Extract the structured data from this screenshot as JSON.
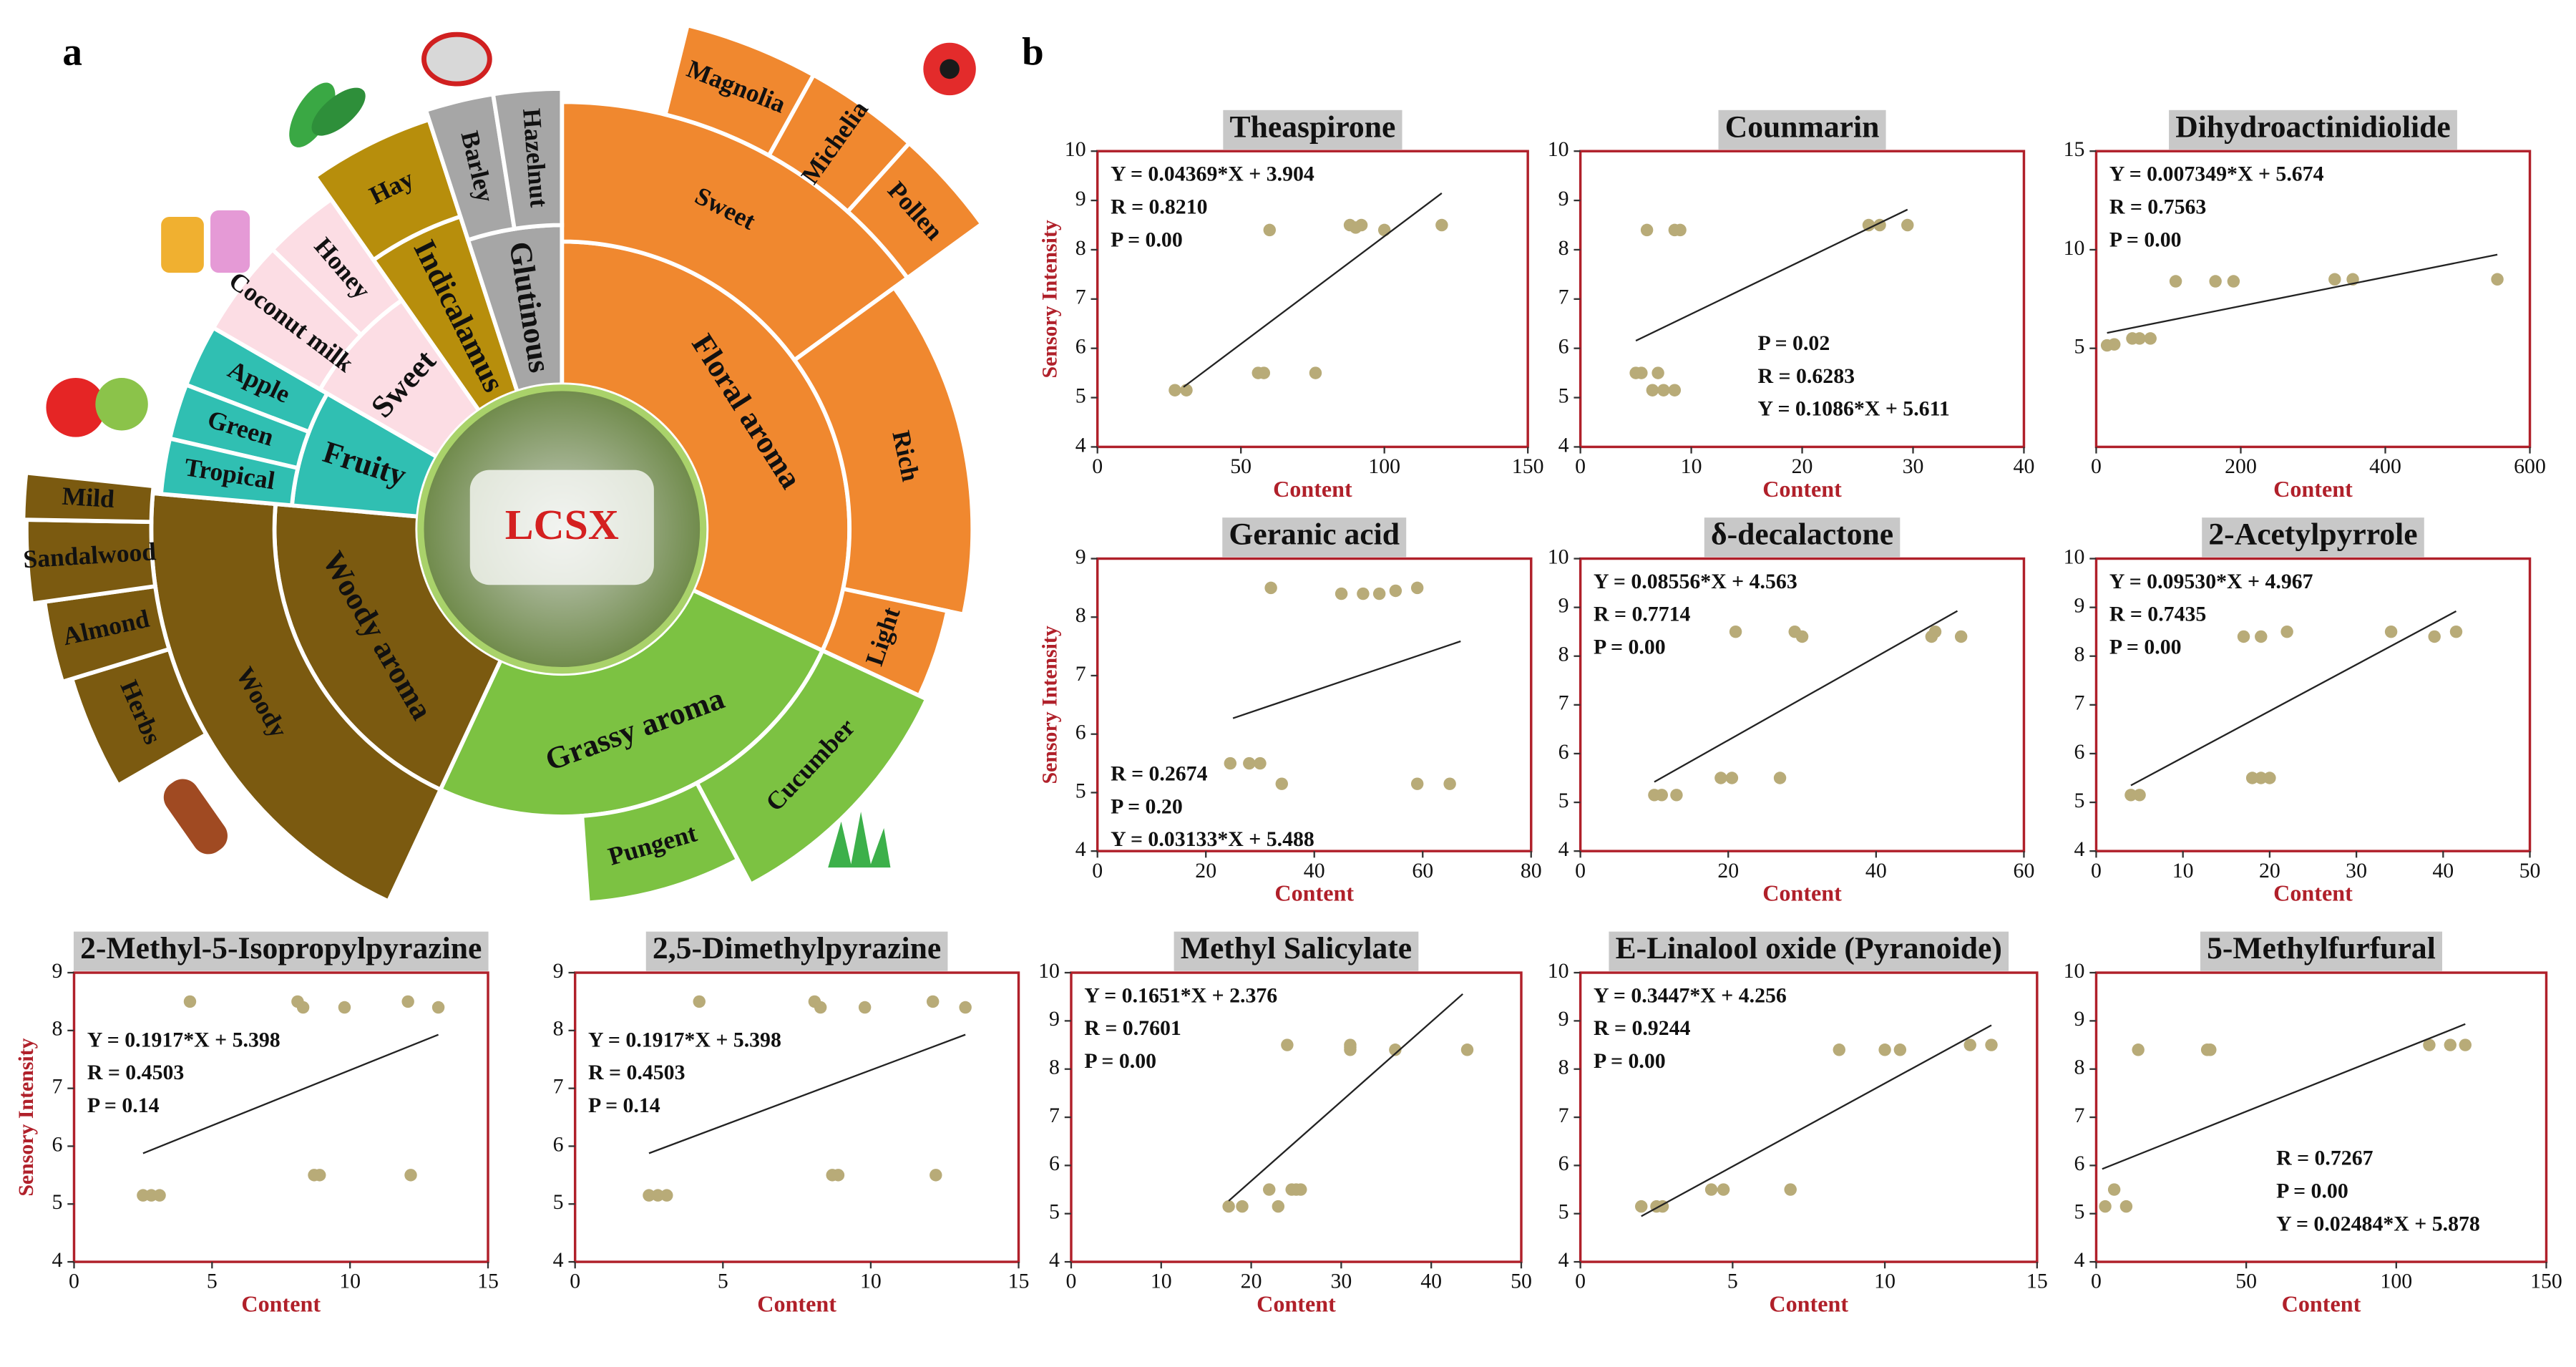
{
  "panel_labels": [
    "a",
    "b"
  ],
  "panel_a": {
    "center_label": "LCSX",
    "groups": [
      {
        "label": "Floral aroma",
        "color": "#f0882f",
        "children": [
          {
            "label": "Sweet",
            "children": [
              {
                "label": "Magnolia"
              },
              {
                "label": "Michelia"
              },
              {
                "label": "Pollen"
              }
            ]
          },
          {
            "label": "Rich"
          },
          {
            "label": "Light"
          }
        ]
      },
      {
        "label": "Grassy aroma",
        "color": "#7cc242",
        "children": [
          {
            "label": "Cucumber"
          },
          {
            "label": "Pungent"
          }
        ]
      },
      {
        "label": "Woody aroma",
        "color": "#7b5a10",
        "children": [
          {
            "label": "Woody",
            "children": [
              {
                "label": "Herbs"
              },
              {
                "label": "Almond"
              },
              {
                "label": "Sandalwood"
              },
              {
                "label": "Mild"
              }
            ]
          }
        ]
      },
      {
        "label": "Fruity",
        "color": "#30bfb2",
        "children": [
          {
            "label": "Apple"
          },
          {
            "label": "Green"
          },
          {
            "label": "Tropical"
          }
        ]
      },
      {
        "label": "Sweet",
        "color": "#fcdde4",
        "children": [
          {
            "label": "Honey"
          },
          {
            "label": "Coconut milk"
          }
        ]
      },
      {
        "label": "Indicalamus",
        "color": "#b78e0c",
        "children": [
          {
            "label": "Hay"
          }
        ]
      },
      {
        "label": "Glutinous",
        "color": "#a6a6a6",
        "children": [
          {
            "label": "Barley"
          },
          {
            "label": "Hazelnut"
          }
        ]
      }
    ]
  },
  "chart_data": [
    {
      "type": "scatter",
      "title": "Theaspirone",
      "xlabel": "Content",
      "ylabel": "Sensory Intensity",
      "color": "#b8ab78",
      "x": [
        27,
        31,
        56,
        58,
        60,
        76,
        88,
        90,
        92,
        100,
        120
      ],
      "values": [
        5.15,
        5.15,
        5.5,
        5.5,
        8.4,
        5.5,
        8.5,
        8.45,
        8.5,
        8.4,
        8.5
      ],
      "xlim": [
        0,
        150
      ],
      "xticks": [
        0,
        50,
        100,
        150
      ],
      "ylim": [
        4,
        10
      ],
      "yticks": [
        4,
        5,
        6,
        7,
        8,
        9,
        10
      ],
      "fit": {
        "slope": 0.04369,
        "intercept": 3.904,
        "x": [
          30,
          120
        ]
      },
      "annotations": [
        "Y = 0.04369*X + 3.904",
        "R = 0.8210",
        "P = 0.00"
      ],
      "annotation_position": "upper left"
    },
    {
      "type": "scatter",
      "title": "Counmarin",
      "xlabel": "Content",
      "color": "#b8ab78",
      "x": [
        5,
        5.5,
        6,
        6.5,
        7,
        7.5,
        8.5,
        8.5,
        9,
        26,
        27,
        29.5
      ],
      "values": [
        5.5,
        5.5,
        8.4,
        5.15,
        5.5,
        5.15,
        5.15,
        8.4,
        8.4,
        8.5,
        8.5,
        8.5
      ],
      "xlim": [
        0,
        40
      ],
      "xticks": [
        0,
        10,
        20,
        30,
        40
      ],
      "ylim": [
        4,
        10
      ],
      "yticks": [
        4,
        5,
        6,
        7,
        8,
        9,
        10
      ],
      "fit": {
        "slope": 0.1086,
        "intercept": 5.611,
        "x": [
          5,
          29.5
        ]
      },
      "annotations": [
        "P = 0.02",
        "R = 0.6283",
        "Y = 0.1086*X + 5.611"
      ],
      "annotation_position": "lower right"
    },
    {
      "type": "scatter",
      "title": "Dihydroactinidiolide",
      "xlabel": "Content",
      "color": "#b8ab78",
      "x": [
        15,
        25,
        50,
        60,
        75,
        110,
        165,
        190,
        330,
        355,
        555
      ],
      "values": [
        5.15,
        5.2,
        5.5,
        5.5,
        5.5,
        8.4,
        8.4,
        8.4,
        8.5,
        8.5,
        8.5
      ],
      "xlim": [
        0,
        600
      ],
      "xticks": [
        0,
        200,
        400,
        600
      ],
      "ylim": [
        0,
        15
      ],
      "yticks": [
        5,
        10,
        15
      ],
      "fit": {
        "slope": 0.007349,
        "intercept": 5.674,
        "x": [
          15,
          555
        ]
      },
      "annotations": [
        "Y = 0.007349*X + 5.674",
        "R = 0.7563",
        "P = 0.00"
      ],
      "annotation_position": "upper left"
    },
    {
      "type": "scatter",
      "title": "Geranic acid",
      "xlabel": "Content",
      "ylabel": "Sensory Intensity",
      "color": "#b8ab78",
      "x": [
        24.5,
        28,
        30,
        32,
        34,
        45,
        49,
        52,
        55,
        59,
        59,
        65
      ],
      "values": [
        5.5,
        5.5,
        5.5,
        8.5,
        5.15,
        8.4,
        8.4,
        8.4,
        8.45,
        8.5,
        5.15,
        5.15
      ],
      "xlim": [
        0,
        80
      ],
      "xticks": [
        0,
        20,
        40,
        60,
        80
      ],
      "ylim": [
        4,
        9
      ],
      "yticks": [
        4,
        5,
        6,
        7,
        8,
        9
      ],
      "fit": {
        "slope": 0.03133,
        "intercept": 5.488,
        "x": [
          25,
          67
        ]
      },
      "annotations": [
        "R = 0.2674",
        "P = 0.20",
        "Y = 0.03133*X + 5.488"
      ],
      "annotation_position": "lower left"
    },
    {
      "type": "scatter",
      "title": "δ-decalactone",
      "xlabel": "Content",
      "color": "#b8ab78",
      "x": [
        10,
        11,
        13,
        19,
        20.5,
        21,
        27,
        29,
        30,
        47.5,
        48,
        51.5
      ],
      "values": [
        5.15,
        5.15,
        5.15,
        5.5,
        5.5,
        8.5,
        5.5,
        8.5,
        8.4,
        8.4,
        8.5,
        8.4
      ],
      "xlim": [
        0,
        60
      ],
      "xticks": [
        0,
        20,
        40,
        60
      ],
      "ylim": [
        4,
        10
      ],
      "yticks": [
        4,
        5,
        6,
        7,
        8,
        9,
        10
      ],
      "fit": {
        "slope": 0.08556,
        "intercept": 4.563,
        "x": [
          10,
          51
        ]
      },
      "annotations": [
        "Y = 0.08556*X + 4.563",
        "R = 0.7714",
        "P = 0.00"
      ],
      "annotation_position": "upper left"
    },
    {
      "type": "scatter",
      "title": "2-Acetylpyrrole",
      "xlabel": "Content",
      "color": "#b8ab78",
      "x": [
        4,
        5,
        17,
        18,
        19,
        19,
        20,
        22,
        34,
        39,
        41.5
      ],
      "values": [
        5.15,
        5.15,
        8.4,
        5.5,
        5.5,
        8.4,
        5.5,
        8.5,
        8.5,
        8.4,
        8.5
      ],
      "xlim": [
        0,
        50
      ],
      "xticks": [
        0,
        10,
        20,
        30,
        40,
        50
      ],
      "ylim": [
        4,
        10
      ],
      "yticks": [
        4,
        5,
        6,
        7,
        8,
        9,
        10
      ],
      "fit": {
        "slope": 0.0953,
        "intercept": 4.967,
        "x": [
          4,
          41.5
        ]
      },
      "annotations": [
        "Y = 0.09530*X + 4.967",
        "R = 0.7435",
        "P = 0.00"
      ],
      "annotation_position": "upper left"
    },
    {
      "type": "scatter",
      "title": "2-Methyl-5-Isopropylpyrazine",
      "xlabel": "Content",
      "ylabel": "Sensory Intensity",
      "color": "#b8ab78",
      "x": [
        2.5,
        2.8,
        3.1,
        4.2,
        8.1,
        8.3,
        8.7,
        8.9,
        9.8,
        12.1,
        12.2,
        13.2
      ],
      "values": [
        5.15,
        5.15,
        5.15,
        8.5,
        8.5,
        8.4,
        5.5,
        5.5,
        8.4,
        8.5,
        5.5,
        8.4
      ],
      "xlim": [
        0,
        15
      ],
      "xticks": [
        0,
        5,
        10,
        15
      ],
      "ylim": [
        4,
        9
      ],
      "yticks": [
        4,
        5,
        6,
        7,
        8,
        9
      ],
      "fit": {
        "slope": 0.1917,
        "intercept": 5.398,
        "x": [
          2.5,
          13.2
        ]
      },
      "annotations": [
        "Y = 0.1917*X + 5.398",
        "R = 0.4503",
        "P = 0.14"
      ],
      "annotation_position": "middle left"
    },
    {
      "type": "scatter",
      "title": "2,5-Dimethylpyrazine",
      "xlabel": "Content",
      "color": "#b8ab78",
      "x": [
        2.5,
        2.8,
        3.1,
        4.2,
        8.1,
        8.3,
        8.7,
        8.9,
        9.8,
        12.1,
        12.2,
        13.2
      ],
      "values": [
        5.15,
        5.15,
        5.15,
        8.5,
        8.5,
        8.4,
        5.5,
        5.5,
        8.4,
        8.5,
        5.5,
        8.4
      ],
      "xlim": [
        0,
        15
      ],
      "xticks": [
        0,
        5,
        10,
        15
      ],
      "ylim": [
        4,
        9
      ],
      "yticks": [
        4,
        5,
        6,
        7,
        8,
        9
      ],
      "fit": {
        "slope": 0.1917,
        "intercept": 5.398,
        "x": [
          2.5,
          13.2
        ]
      },
      "annotations": [
        "Y = 0.1917*X + 5.398",
        "R = 0.4503",
        "P = 0.14"
      ],
      "annotation_position": "middle left"
    },
    {
      "type": "scatter",
      "title": "Methyl Salicylate",
      "xlabel": "Content",
      "color": "#b8ab78",
      "x": [
        17.5,
        19,
        22,
        23,
        24,
        24.5,
        25,
        25.5,
        31,
        31,
        31,
        36,
        44
      ],
      "values": [
        5.15,
        5.15,
        5.5,
        5.15,
        8.5,
        5.5,
        5.5,
        5.5,
        8.4,
        8.5,
        8.45,
        8.4,
        8.4
      ],
      "xlim": [
        0,
        50
      ],
      "xticks": [
        0,
        10,
        20,
        30,
        40,
        50
      ],
      "ylim": [
        4,
        10
      ],
      "yticks": [
        4,
        5,
        6,
        7,
        8,
        9,
        10
      ],
      "fit": {
        "slope": 0.1651,
        "intercept": 2.376,
        "x": [
          17.5,
          43.5
        ]
      },
      "annotations": [
        "Y = 0.1651*X + 2.376",
        "R = 0.7601",
        "P = 0.00"
      ],
      "annotation_position": "upper left"
    },
    {
      "type": "scatter",
      "title": "E-Linalool oxide (Pyranoide)",
      "xlabel": "Content",
      "color": "#b8ab78",
      "x": [
        2,
        2.5,
        2.7,
        4.3,
        4.7,
        6.9,
        8.5,
        10,
        10.5,
        12.8,
        13.5
      ],
      "values": [
        5.15,
        5.15,
        5.15,
        5.5,
        5.5,
        5.5,
        8.4,
        8.4,
        8.4,
        8.5,
        8.5
      ],
      "xlim": [
        0,
        15
      ],
      "xticks": [
        0,
        5,
        10,
        15
      ],
      "ylim": [
        4,
        10
      ],
      "yticks": [
        4,
        5,
        6,
        7,
        8,
        9,
        10
      ],
      "fit": {
        "slope": 0.3447,
        "intercept": 4.256,
        "x": [
          2,
          13.5
        ]
      },
      "annotations": [
        "Y = 0.3447*X + 4.256",
        "R = 0.9244",
        "P = 0.00"
      ],
      "annotation_position": "upper left"
    },
    {
      "type": "scatter",
      "title": "5-Methylfurfural",
      "xlabel": "Content",
      "color": "#b8ab78",
      "x": [
        3,
        6,
        10,
        14,
        37,
        38,
        111,
        118,
        123
      ],
      "values": [
        5.15,
        5.5,
        5.15,
        8.4,
        8.4,
        8.4,
        8.5,
        8.5,
        8.5
      ],
      "xlim": [
        0,
        150
      ],
      "xticks": [
        0,
        50,
        100,
        150
      ],
      "ylim": [
        4,
        10
      ],
      "yticks": [
        4,
        5,
        6,
        7,
        8,
        9,
        10
      ],
      "fit": {
        "slope": 0.02484,
        "intercept": 5.878,
        "x": [
          2,
          123
        ]
      },
      "annotations": [
        "R = 0.7267",
        "P = 0.00",
        "Y = 0.02484*X + 5.878"
      ],
      "annotation_position": "lower right"
    }
  ]
}
